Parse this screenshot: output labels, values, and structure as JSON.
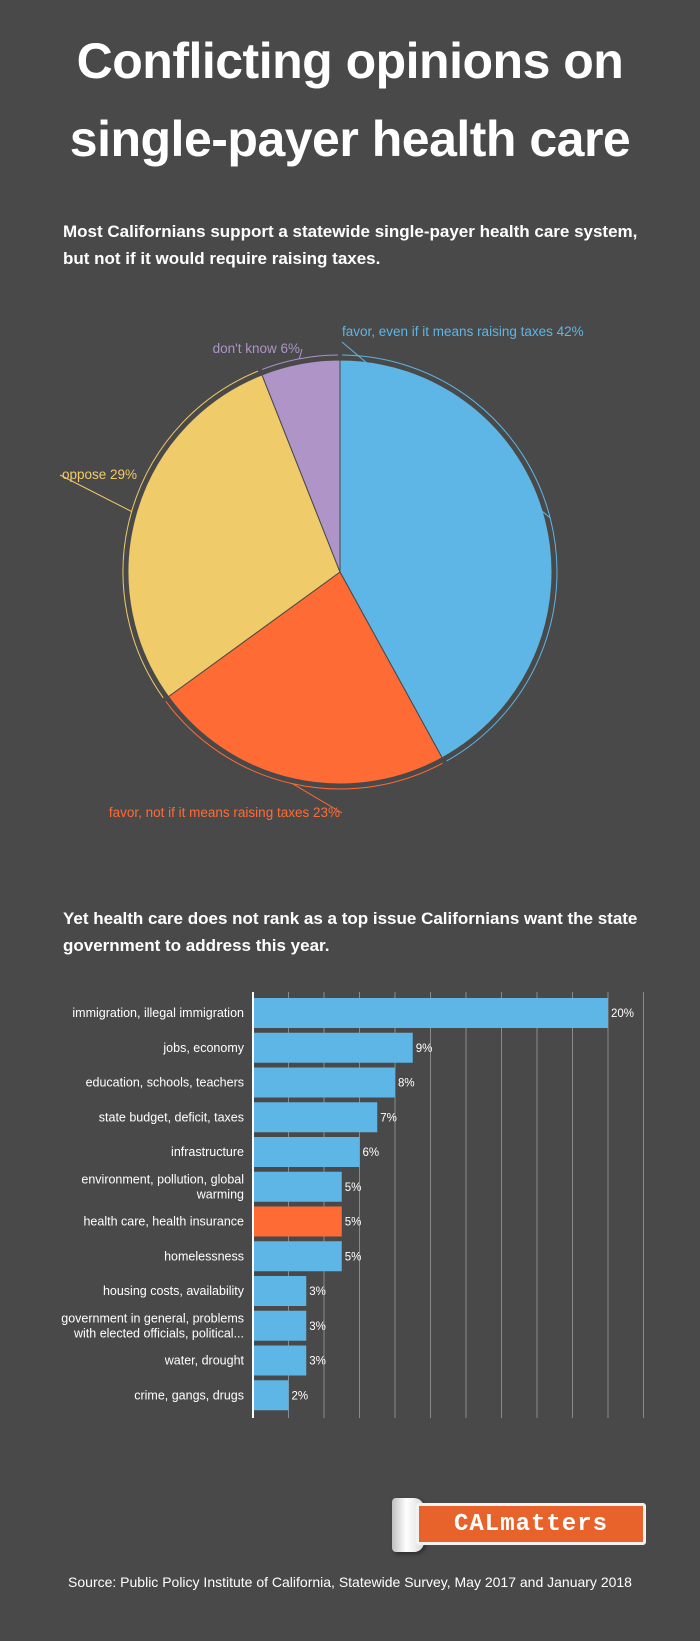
{
  "title_line1": "Conflicting opinions on",
  "title_line2": "single-payer health care",
  "pie_section": {
    "subtitle_line1": "Most Californians support a statewide single-payer health care system,",
    "subtitle_line2": "but not if it would require raising taxes."
  },
  "bar_section": {
    "subtitle_line1": "Yet health care does not rank as a top issue Californians want the state",
    "subtitle_line2": "government to address this year."
  },
  "logo_text": "CALmatters",
  "source": "Source: Public Policy Institute of California, Statewide Survey, May 2017 and January 2018",
  "chart_data": [
    {
      "type": "pie",
      "title": "",
      "slices": [
        {
          "label": "favor, even if it means raising taxes 42%",
          "value": 42,
          "color": "#5db6e5"
        },
        {
          "label": "favor, not if it means raising taxes 23%",
          "value": 23,
          "color": "#ff6b35"
        },
        {
          "label": "oppose 29%",
          "value": 29,
          "color": "#f0cb6a"
        },
        {
          "label": "don't know 6%",
          "value": 6,
          "color": "#ae94c7"
        }
      ]
    },
    {
      "type": "bar",
      "orientation": "horizontal",
      "xlim": [
        0,
        22
      ],
      "grid": true,
      "categories": [
        [
          "immigration, illegal immigration"
        ],
        [
          "jobs, economy"
        ],
        [
          "education, schools, teachers"
        ],
        [
          "state budget, deficit, taxes"
        ],
        [
          "infrastructure"
        ],
        [
          "environment, pollution, global",
          "warming"
        ],
        [
          "health care, health insurance"
        ],
        [
          "homelessness"
        ],
        [
          "housing costs, availability"
        ],
        [
          "government in general, problems",
          "with elected officials, political..."
        ],
        [
          "water, drought"
        ],
        [
          "crime, gangs, drugs"
        ]
      ],
      "values": [
        20,
        9,
        8,
        7,
        6,
        5,
        5,
        5,
        3,
        3,
        3,
        2
      ],
      "value_labels": [
        "20%",
        "9%",
        "8%",
        "7%",
        "6%",
        "5%",
        "5%",
        "5%",
        "3%",
        "3%",
        "3%",
        "2%"
      ],
      "bar_color": "#5db6e5",
      "highlight_color": "#ff6b35",
      "highlight_index": 6
    }
  ]
}
